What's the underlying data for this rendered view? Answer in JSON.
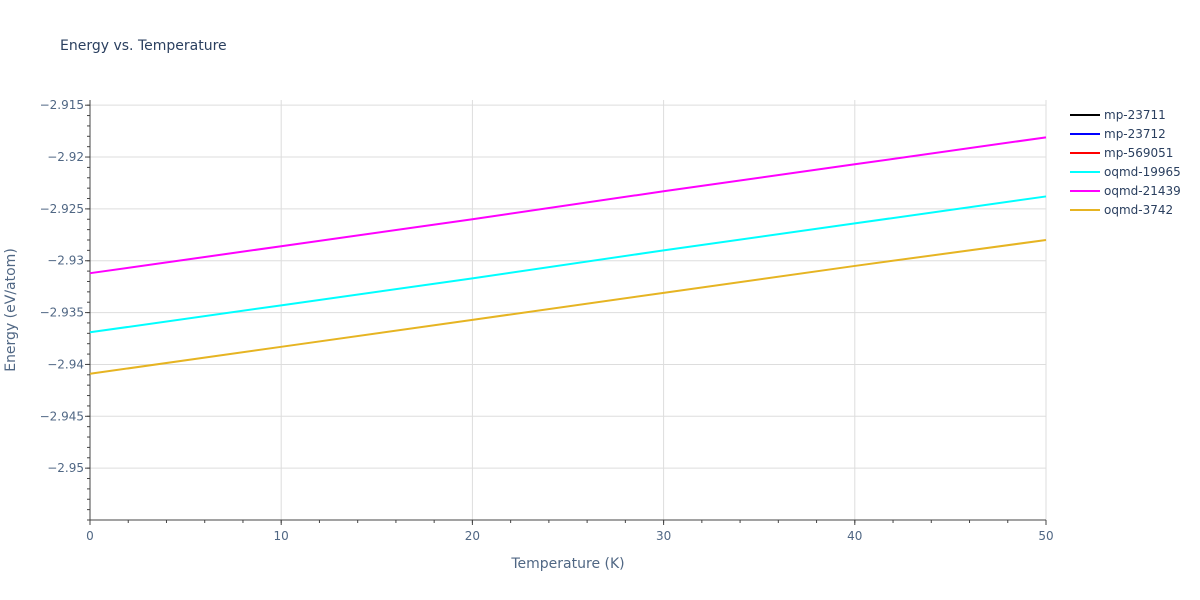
{
  "chart_data": {
    "type": "line",
    "title": "Energy vs. Temperature",
    "xlabel": "Temperature (K)",
    "ylabel": "Energy (eV/atom)",
    "xlim": [
      0,
      50
    ],
    "ylim": [
      -2.955,
      -2.9145
    ],
    "x_ticks": [
      0,
      10,
      20,
      30,
      40,
      50
    ],
    "x_tick_labels": [
      "0",
      "10",
      "20",
      "30",
      "40",
      "50"
    ],
    "y_ticks": [
      -2.95,
      -2.945,
      -2.94,
      -2.935,
      -2.93,
      -2.925,
      -2.92,
      -2.915
    ],
    "y_tick_labels": [
      "−2.95",
      "−2.945",
      "−2.94",
      "−2.935",
      "−2.93",
      "−2.925",
      "−2.92",
      "−2.915"
    ],
    "grid": true,
    "legend_position": "top-right",
    "series": [
      {
        "name": "mp-23711",
        "color": "#000000",
        "x": [],
        "y": []
      },
      {
        "name": "mp-23712",
        "color": "#0000ff",
        "x": [],
        "y": []
      },
      {
        "name": "mp-569051",
        "color": "#ff0000",
        "x": [],
        "y": []
      },
      {
        "name": "oqmd-19965",
        "color": "#00ffff",
        "x": [
          0,
          10,
          20,
          30,
          40,
          50
        ],
        "y": [
          -2.9369,
          -2.9343,
          -2.9317,
          -2.929,
          -2.9264,
          -2.9238
        ]
      },
      {
        "name": "oqmd-21439",
        "color": "#ff00ff",
        "x": [
          0,
          10,
          20,
          30,
          40,
          50
        ],
        "y": [
          -2.9312,
          -2.9286,
          -2.926,
          -2.9233,
          -2.9207,
          -2.9181
        ]
      },
      {
        "name": "oqmd-3742",
        "color": "#e6b422",
        "x": [
          0,
          10,
          20,
          30,
          40,
          50
        ],
        "y": [
          -2.9409,
          -2.9383,
          -2.9357,
          -2.9331,
          -2.9305,
          -2.928
        ]
      }
    ]
  }
}
